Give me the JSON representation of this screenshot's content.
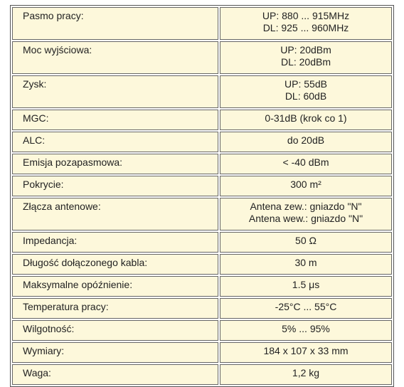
{
  "table": {
    "rows": [
      {
        "label": "Pasmo pracy:",
        "value": [
          "UP: 880 ... 915MHz",
          "DL: 925 ... 960MHz"
        ]
      },
      {
        "label": "Moc wyjściowa:",
        "value": [
          "UP: 20dBm",
          "DL: 20dBm"
        ]
      },
      {
        "label": "Zysk:",
        "value": [
          "UP: 55dB",
          "DL: 60dB"
        ]
      },
      {
        "label": "MGC:",
        "value": [
          "0-31dB (krok co 1)"
        ]
      },
      {
        "label": "ALC:",
        "value": [
          "do 20dB"
        ]
      },
      {
        "label": "Emisja pozapasmowa:",
        "value": [
          "< -40 dBm"
        ]
      },
      {
        "label": "Pokrycie:",
        "value": [
          "300 m²"
        ]
      },
      {
        "label": "Złącza antenowe:",
        "value": [
          "Antena zew.: gniazdo \"N\"",
          "Antena wew.: gniazdo \"N\""
        ]
      },
      {
        "label": "Impedancja:",
        "value": [
          "50 Ω"
        ]
      },
      {
        "label": "Długość dołączonego kabla:",
        "value": [
          "30 m"
        ]
      },
      {
        "label": "Maksymalne opóźnienie:",
        "value": [
          "1.5 μs"
        ]
      },
      {
        "label": "Temperatura pracy:",
        "value": [
          "-25°C ... 55°C"
        ]
      },
      {
        "label": "Wilgotność:",
        "value": [
          "5% ... 95%"
        ]
      },
      {
        "label": "Wymiary:",
        "value": [
          "184 x 107 x 33 mm"
        ]
      },
      {
        "label": "Waga:",
        "value": [
          "1,2 kg"
        ]
      }
    ]
  }
}
